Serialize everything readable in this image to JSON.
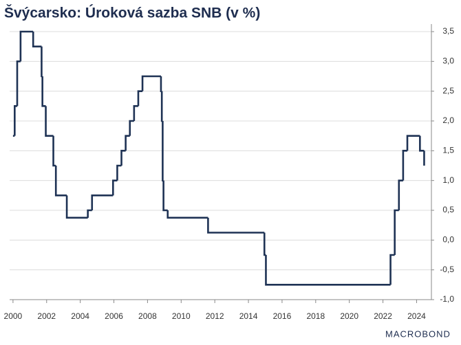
{
  "chart_data": {
    "type": "step-line",
    "title": "Švýcarsko: Úroková sazba SNB (v %)",
    "source_logo": "MACROBOND",
    "x": [
      2000.0,
      2000.1,
      2000.25,
      2000.45,
      2001.2,
      2001.7,
      2001.75,
      2001.95,
      2002.4,
      2002.55,
      2003.2,
      2004.45,
      2004.7,
      2005.95,
      2006.2,
      2006.45,
      2006.7,
      2006.95,
      2007.2,
      2007.45,
      2007.7,
      2008.8,
      2008.85,
      2008.9,
      2008.95,
      2009.2,
      2011.6,
      2014.95,
      2015.04,
      2022.45,
      2022.7,
      2022.95,
      2023.2,
      2023.45,
      2024.2,
      2024.45
    ],
    "series": [
      {
        "name": "Úroková sazba SNB",
        "color": "#1e3254",
        "values": [
          1.75,
          2.25,
          3.0,
          3.5,
          3.25,
          2.75,
          2.25,
          1.75,
          1.25,
          0.75,
          0.375,
          0.5,
          0.75,
          1.0,
          1.25,
          1.5,
          1.75,
          2.0,
          2.25,
          2.5,
          2.75,
          2.5,
          2.0,
          1.0,
          0.5,
          0.375,
          0.125,
          -0.25,
          -0.75,
          -0.25,
          0.5,
          1.0,
          1.5,
          1.75,
          1.5,
          1.25
        ]
      }
    ],
    "xlim": [
      1999.8,
      2024.8
    ],
    "xticks": [
      2000,
      2002,
      2004,
      2006,
      2008,
      2010,
      2012,
      2014,
      2016,
      2018,
      2020,
      2022,
      2024
    ],
    "ylim": [
      -1.0,
      3.5
    ],
    "yticks": [
      {
        "value": -1.0,
        "label": "-1,0"
      },
      {
        "value": -0.5,
        "label": "-0,5"
      },
      {
        "value": 0.0,
        "label": "0,0"
      },
      {
        "value": 0.5,
        "label": "0,5"
      },
      {
        "value": 1.0,
        "label": "1,0"
      },
      {
        "value": 1.5,
        "label": "1,5"
      },
      {
        "value": 2.0,
        "label": "2,0"
      },
      {
        "value": 2.5,
        "label": "2,5"
      },
      {
        "value": 3.0,
        "label": "3,0"
      },
      {
        "value": 3.5,
        "label": "3,5"
      }
    ],
    "grid": true,
    "y_axis_side": "right"
  }
}
